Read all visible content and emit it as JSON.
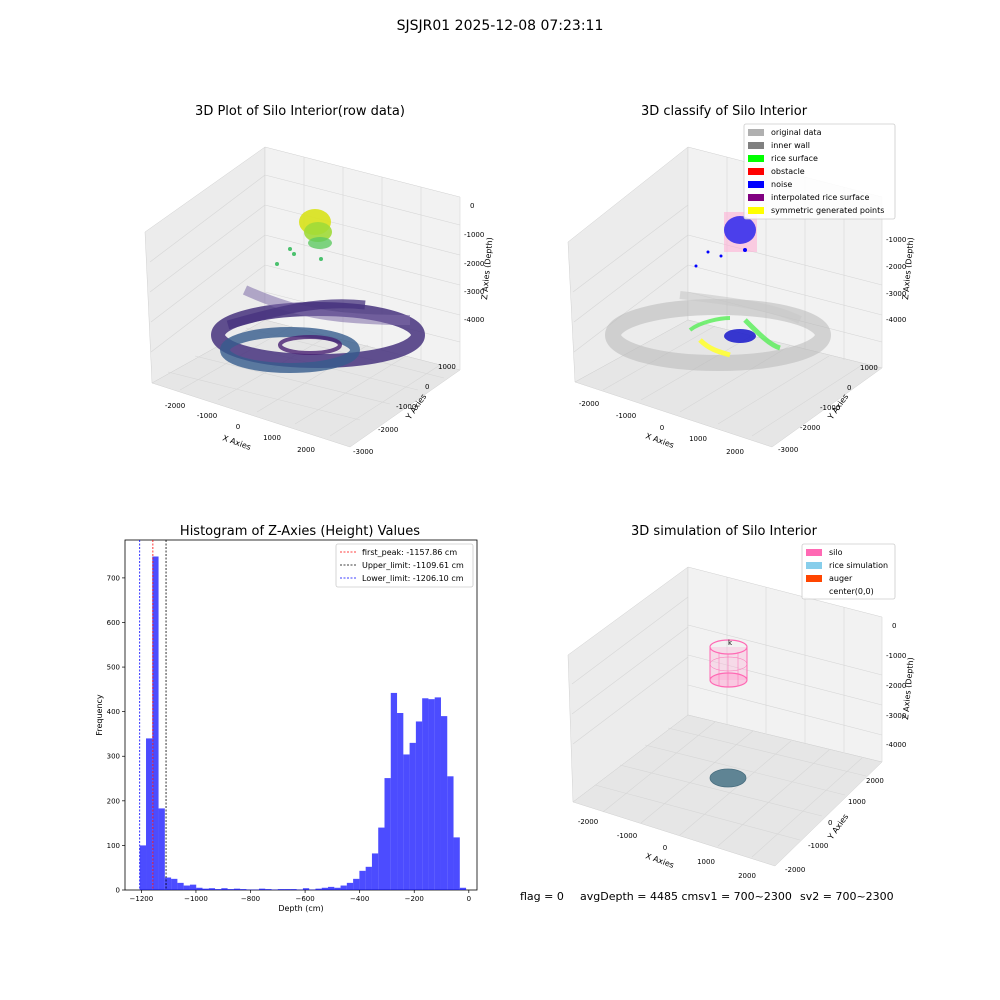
{
  "suptitle": "SJSJR01 2025-12-08 07:23:11",
  "panels": {
    "raw": {
      "title": "3D Plot of Silo Interior(row data)",
      "xlabel": "X Axies",
      "ylabel": "Y Axies",
      "zlabel": "Z Axies (Depth)",
      "xticks": [
        "-2000",
        "-1000",
        "0",
        "1000",
        "2000"
      ],
      "yticks": [
        "1000",
        "0",
        "-1000",
        "-2000",
        "-3000"
      ],
      "zticks": [
        "0",
        "-1000",
        "-2000",
        "-3000",
        "-4000"
      ]
    },
    "classify": {
      "title": "3D classify of Silo Interior",
      "xlabel": "X Axies",
      "ylabel": "Y Axies",
      "zlabel": "Z Axies (Depth)",
      "xticks": [
        "-2000",
        "-1000",
        "0",
        "1000",
        "2000"
      ],
      "yticks": [
        "1000",
        "0",
        "-1000",
        "-2000",
        "-3000"
      ],
      "zticks": [
        "-1000",
        "-2000",
        "-3000",
        "-4000"
      ],
      "legend": [
        {
          "label": "original data",
          "color": "#b0b0b0"
        },
        {
          "label": "inner wall",
          "color": "#808080"
        },
        {
          "label": "rice surface",
          "color": "#00ff00"
        },
        {
          "label": "obstacle",
          "color": "#ff0000"
        },
        {
          "label": "noise",
          "color": "#0000ff"
        },
        {
          "label": "interpolated rice surface",
          "color": "#800080"
        },
        {
          "label": "symmetric generated points",
          "color": "#ffff00"
        }
      ]
    },
    "simulation": {
      "title": "3D simulation of Silo Interior",
      "xlabel": "X Axies",
      "ylabel": "Y Axies",
      "zlabel": "Z Axies (Depth)",
      "xticks": [
        "-2000",
        "-1000",
        "0",
        "1000",
        "2000"
      ],
      "yticks": [
        "2000",
        "1000",
        "0",
        "-1000",
        "-2000"
      ],
      "zticks": [
        "0",
        "-1000",
        "-2000",
        "-3000",
        "-4000"
      ],
      "legend": [
        {
          "label": "silo",
          "color": "#ff69b4"
        },
        {
          "label": "rice simulation",
          "color": "#87ceeb"
        },
        {
          "label": "auger",
          "color": "#ff4500"
        },
        {
          "label": "center(0,0)",
          "color": "#ffffff"
        }
      ],
      "auger_marker": "k"
    }
  },
  "chart_data": {
    "type": "bar",
    "title": "Histogram of Z-Axies (Height) Values",
    "xlabel": "Depth (cm)",
    "ylabel": "Frequency",
    "xlim": [
      -1260,
      30
    ],
    "ylim": [
      0,
      785
    ],
    "xticks": [
      -1200,
      -1000,
      -800,
      -600,
      -400,
      -200,
      0
    ],
    "yticks": [
      0,
      100,
      200,
      300,
      400,
      500,
      600,
      700
    ],
    "bar_color": "#0000ff",
    "bin_width": 23,
    "bins": [
      {
        "x": -1206,
        "count": 100
      },
      {
        "x": -1183,
        "count": 340
      },
      {
        "x": -1160,
        "count": 748
      },
      {
        "x": -1137,
        "count": 183
      },
      {
        "x": -1114,
        "count": 28
      },
      {
        "x": -1091,
        "count": 25
      },
      {
        "x": -1068,
        "count": 16
      },
      {
        "x": -1045,
        "count": 10
      },
      {
        "x": -1022,
        "count": 12
      },
      {
        "x": -999,
        "count": 5
      },
      {
        "x": -976,
        "count": 3
      },
      {
        "x": -953,
        "count": 4
      },
      {
        "x": -930,
        "count": 2
      },
      {
        "x": -907,
        "count": 4
      },
      {
        "x": -884,
        "count": 2
      },
      {
        "x": -861,
        "count": 3
      },
      {
        "x": -838,
        "count": 2
      },
      {
        "x": -815,
        "count": 1
      },
      {
        "x": -792,
        "count": 1
      },
      {
        "x": -769,
        "count": 3
      },
      {
        "x": -746,
        "count": 2
      },
      {
        "x": -723,
        "count": 1
      },
      {
        "x": -700,
        "count": 2
      },
      {
        "x": -677,
        "count": 2
      },
      {
        "x": -654,
        "count": 2
      },
      {
        "x": -631,
        "count": 1
      },
      {
        "x": -608,
        "count": 4
      },
      {
        "x": -585,
        "count": 1
      },
      {
        "x": -562,
        "count": 3
      },
      {
        "x": -539,
        "count": 5
      },
      {
        "x": -516,
        "count": 7
      },
      {
        "x": -493,
        "count": 5
      },
      {
        "x": -470,
        "count": 10
      },
      {
        "x": -447,
        "count": 16
      },
      {
        "x": -424,
        "count": 25
      },
      {
        "x": -401,
        "count": 43
      },
      {
        "x": -378,
        "count": 52
      },
      {
        "x": -355,
        "count": 82
      },
      {
        "x": -332,
        "count": 140
      },
      {
        "x": -309,
        "count": 251
      },
      {
        "x": -286,
        "count": 442
      },
      {
        "x": -263,
        "count": 397
      },
      {
        "x": -240,
        "count": 304
      },
      {
        "x": -217,
        "count": 330
      },
      {
        "x": -194,
        "count": 378
      },
      {
        "x": -171,
        "count": 430
      },
      {
        "x": -148,
        "count": 428
      },
      {
        "x": -125,
        "count": 432
      },
      {
        "x": -102,
        "count": 390
      },
      {
        "x": -79,
        "count": 255
      },
      {
        "x": -56,
        "count": 118
      },
      {
        "x": -33,
        "count": 5
      }
    ],
    "vlines": [
      {
        "name": "first_peak: -1157.86 cm",
        "x": -1157.86,
        "color": "#ff0000"
      },
      {
        "name": "Upper_limit: -1109.61 cm",
        "x": -1109.61,
        "color": "#000000"
      },
      {
        "name": "Lower_limit: -1206.10 cm",
        "x": -1206.1,
        "color": "#0000ff"
      }
    ],
    "legend_position": "top-right"
  },
  "footer": {
    "flag": "flag = 0",
    "avg": "avgDepth = 4485 cmsv1 = 700~2300",
    "sv2": "sv2 = 700~2300"
  }
}
